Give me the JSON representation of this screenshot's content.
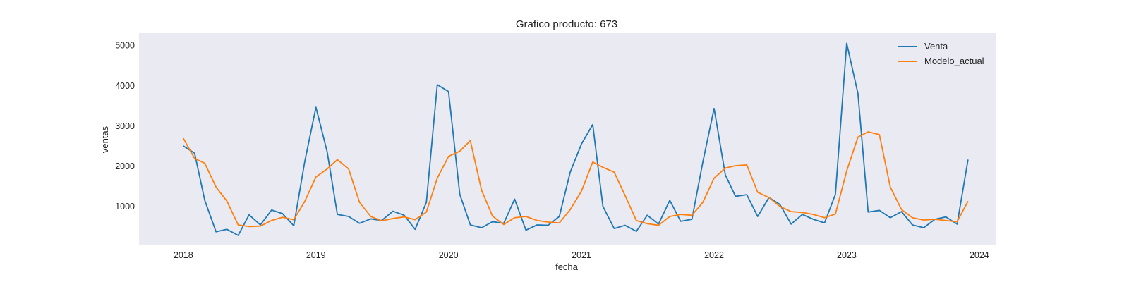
{
  "chart_data": {
    "type": "line",
    "title": "Grafico producto: 673",
    "xlabel": "fecha",
    "ylabel": "ventas",
    "x_type": "date",
    "xlim": [
      "2017-09-01",
      "2024-02-15"
    ],
    "ylim": [
      50,
      5300
    ],
    "xticks": [
      "2018-01-01",
      "2019-01-01",
      "2020-01-01",
      "2021-01-01",
      "2022-01-01",
      "2023-01-01",
      "2024-01-01"
    ],
    "xtick_labels": [
      "2018",
      "2019",
      "2020",
      "2021",
      "2022",
      "2023",
      "2024"
    ],
    "yticks": [
      1000,
      2000,
      3000,
      4000,
      5000
    ],
    "ytick_labels": [
      "1000",
      "2000",
      "3000",
      "4000",
      "5000"
    ],
    "grid": false,
    "background": "#e9eaf2",
    "legend_position": "top-right",
    "x": [
      "2018-01-01",
      "2018-02-01",
      "2018-03-01",
      "2018-04-01",
      "2018-05-01",
      "2018-06-01",
      "2018-07-01",
      "2018-08-01",
      "2018-09-01",
      "2018-10-01",
      "2018-11-01",
      "2018-12-01",
      "2019-01-01",
      "2019-02-01",
      "2019-03-01",
      "2019-04-01",
      "2019-05-01",
      "2019-06-01",
      "2019-07-01",
      "2019-08-01",
      "2019-09-01",
      "2019-10-01",
      "2019-11-01",
      "2019-12-01",
      "2020-01-01",
      "2020-02-01",
      "2020-03-01",
      "2020-04-01",
      "2020-05-01",
      "2020-06-01",
      "2020-07-01",
      "2020-08-01",
      "2020-09-01",
      "2020-10-01",
      "2020-11-01",
      "2020-12-01",
      "2021-01-01",
      "2021-02-01",
      "2021-03-01",
      "2021-04-01",
      "2021-05-01",
      "2021-06-01",
      "2021-07-01",
      "2021-08-01",
      "2021-09-01",
      "2021-10-01",
      "2021-11-01",
      "2021-12-01",
      "2022-01-01",
      "2022-02-01",
      "2022-03-01",
      "2022-04-01",
      "2022-05-01",
      "2022-06-01",
      "2022-07-01",
      "2022-08-01",
      "2022-09-01",
      "2022-10-01",
      "2022-11-01",
      "2022-12-01",
      "2023-01-01",
      "2023-02-01",
      "2023-03-01",
      "2023-04-01",
      "2023-05-01",
      "2023-06-01",
      "2023-07-01",
      "2023-08-01",
      "2023-09-01",
      "2023-10-01",
      "2023-11-01",
      "2023-12-01"
    ],
    "series": [
      {
        "name": "Venta",
        "color": "#1f77b4",
        "values": [
          2500,
          2320,
          1150,
          370,
          430,
          280,
          790,
          540,
          910,
          820,
          520,
          2100,
          3460,
          2350,
          800,
          750,
          580,
          690,
          650,
          880,
          780,
          430,
          1100,
          4020,
          3850,
          1300,
          540,
          470,
          620,
          580,
          1180,
          410,
          540,
          530,
          750,
          1850,
          2550,
          3030,
          1000,
          450,
          530,
          380,
          780,
          560,
          1150,
          630,
          680,
          2100,
          3430,
          1780,
          1250,
          1290,
          750,
          1220,
          1050,
          560,
          800,
          680,
          590,
          1300,
          5050,
          3800,
          860,
          900,
          720,
          870,
          540,
          470,
          680,
          740,
          560,
          2160
        ]
      },
      {
        "name": "Modelo_actual",
        "color": "#ff7f0e",
        "values": [
          2690,
          2190,
          2070,
          1480,
          1130,
          540,
          500,
          510,
          650,
          730,
          670,
          1120,
          1730,
          1930,
          2160,
          1930,
          1100,
          750,
          640,
          700,
          740,
          670,
          860,
          1700,
          2240,
          2370,
          2630,
          1400,
          760,
          550,
          720,
          750,
          650,
          610,
          590,
          920,
          1380,
          2100,
          1970,
          1850,
          1270,
          650,
          570,
          530,
          750,
          800,
          780,
          1100,
          1700,
          1950,
          2010,
          2030,
          1350,
          1220,
          1000,
          870,
          850,
          800,
          720,
          810,
          1880,
          2720,
          2850,
          2780,
          1480,
          920,
          720,
          660,
          680,
          650,
          620,
          1130
        ]
      }
    ]
  }
}
